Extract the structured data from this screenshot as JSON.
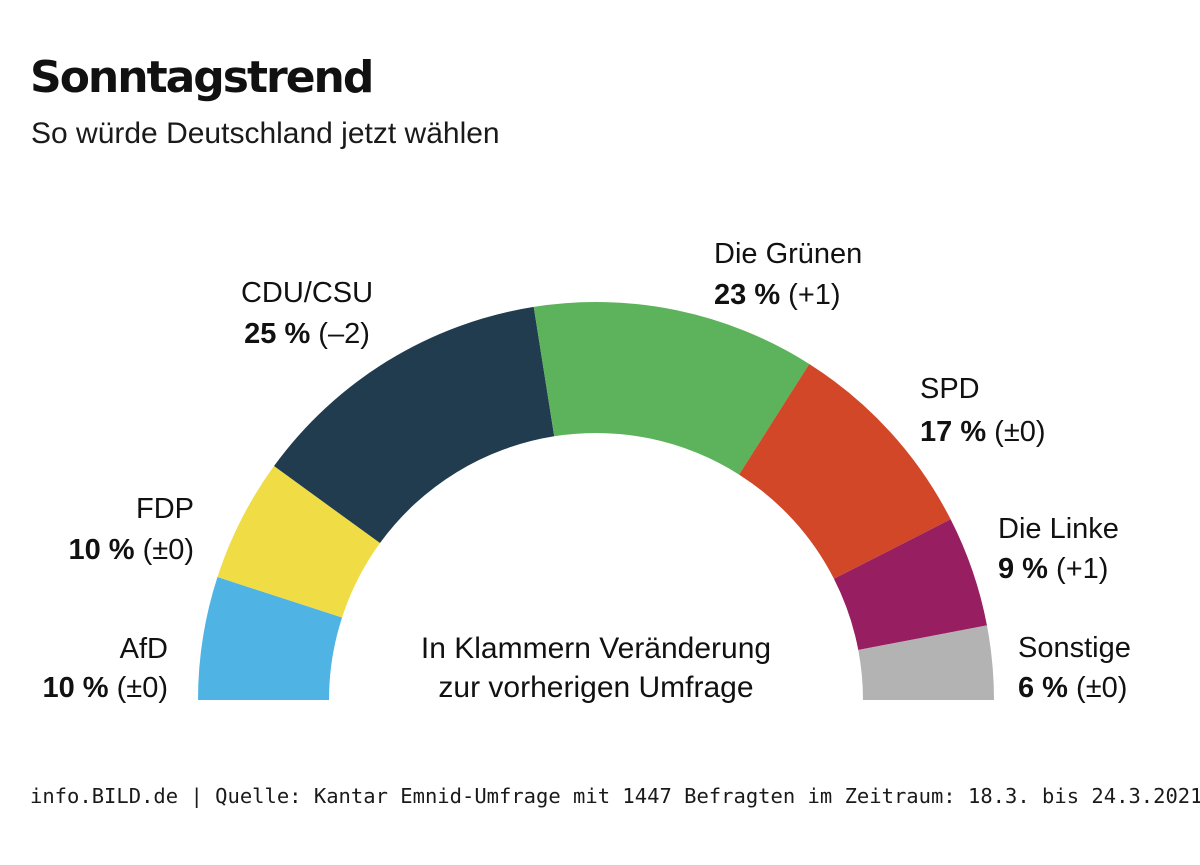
{
  "chart_data": {
    "type": "pie",
    "variant": "half-donut",
    "title": "Sonntagstrend",
    "subtitle": "So würde Deutschland jetzt wählen",
    "segments": [
      {
        "name": "AfD",
        "value": 10,
        "value_label": "10 %",
        "change": "(±0)",
        "color": "#4fb4e4"
      },
      {
        "name": "FDP",
        "value": 10,
        "value_label": "10 %",
        "change": "(±0)",
        "color": "#f0dc45"
      },
      {
        "name": "CDU/CSU",
        "value": 25,
        "value_label": "25 %",
        "change": "(–2)",
        "color": "#203c4e"
      },
      {
        "name": "Die Grünen",
        "value": 23,
        "value_label": "23 %",
        "change": "(+1)",
        "color": "#5cb35b"
      },
      {
        "name": "SPD",
        "value": 17,
        "value_label": "17 %",
        "change": "(±0)",
        "color": "#d24727"
      },
      {
        "name": "Die Linke",
        "value": 9,
        "value_label": "9 %",
        "change": "(+1)",
        "color": "#981e62"
      },
      {
        "name": "Sonstige",
        "value": 6,
        "value_label": "6 %",
        "change": "(±0)",
        "color": "#b3b3b3"
      }
    ],
    "note_lines": [
      "In Klammern Veränderung",
      "zur vorherigen Umfrage"
    ],
    "source": "info.BILD.de | Quelle: Kantar Emnid-Umfrage mit 1447 Befragten im Zeitraum: 18.3. bis 24.3.2021"
  }
}
